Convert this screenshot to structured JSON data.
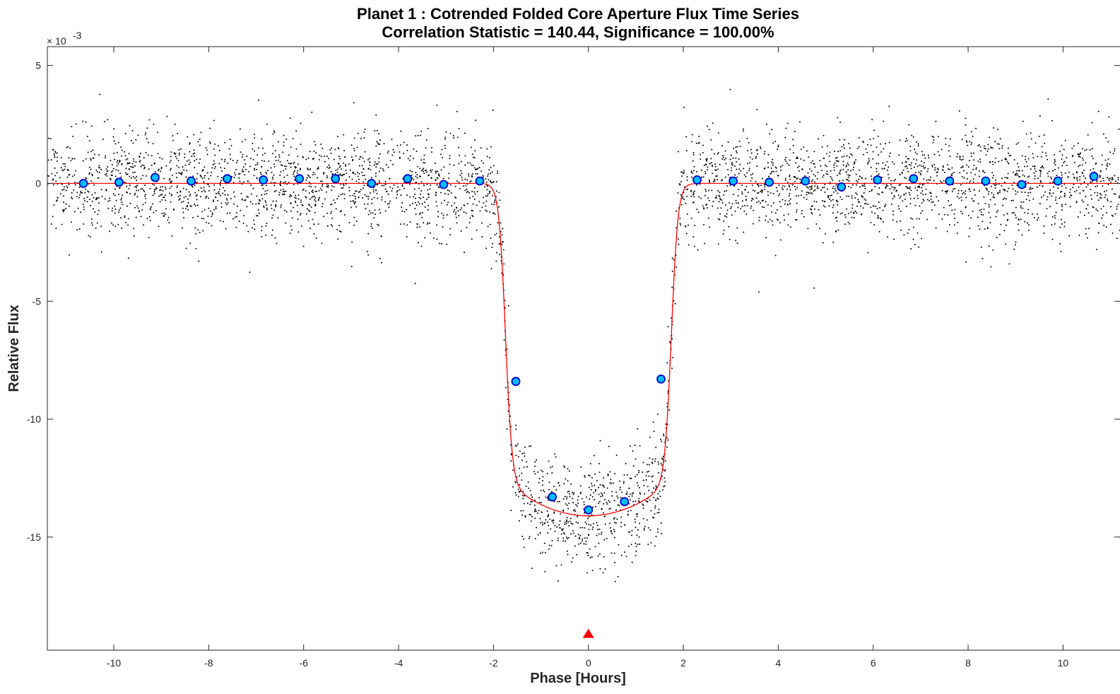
{
  "chart_data": {
    "type": "scatter",
    "title": "Planet 1 : Cotrended Folded Core Aperture Flux Time Series",
    "subtitle": "Correlation Statistic = 140.44, Significance = 100.00%",
    "xlabel": "Phase [Hours]",
    "ylabel": "Relative Flux",
    "y_exponent_label": "× 10",
    "y_exponent_power": "-3",
    "xlim": [
      -11.4,
      11.2
    ],
    "ylim": [
      -19.8,
      5.8
    ],
    "x_ticks": [
      -10,
      -8,
      -6,
      -4,
      -2,
      0,
      2,
      4,
      6,
      8,
      10
    ],
    "x_tick_labels": [
      "-10",
      "-8",
      "-6",
      "-4",
      "-2",
      "0",
      "2",
      "4",
      "6",
      "8",
      "10"
    ],
    "y_ticks": [
      5,
      0,
      -5,
      -10,
      -15
    ],
    "y_tick_labels": [
      "5",
      "0",
      "-5",
      "-10",
      "-15"
    ],
    "grid": false,
    "colors": {
      "raw_points": "#000000",
      "binned_fill": "#00bfff",
      "binned_edge": "#0000cc",
      "model_line": "#ff0000",
      "epoch_marker": "#ff0000",
      "axes": "#262626"
    },
    "model": {
      "name": "transit model fit",
      "baseline": 0.0,
      "depth": -14.1,
      "half_duration": 1.88,
      "ingress_center": 1.75
    },
    "epoch_marker": {
      "x": 0.0,
      "y": -19.1,
      "shape": "triangle"
    },
    "series": [
      {
        "kind": "binned",
        "marker": "circle",
        "x": [
          -10.64,
          -9.89,
          -9.13,
          -8.37,
          -7.61,
          -6.85,
          -6.09,
          -5.33,
          -4.57,
          -3.81,
          -3.05,
          -2.29,
          -1.53,
          -0.76,
          0.0,
          0.76,
          1.53,
          2.29,
          3.05,
          3.81,
          4.57,
          5.33,
          6.09,
          6.85,
          7.61,
          8.37,
          9.13,
          9.89,
          10.65
        ],
        "y": [
          0.0,
          0.05,
          0.25,
          0.1,
          0.2,
          0.15,
          0.2,
          0.2,
          0.0,
          0.2,
          -0.05,
          0.1,
          -8.4,
          -13.3,
          -13.85,
          -13.5,
          -8.3,
          0.15,
          0.1,
          0.05,
          0.1,
          -0.15,
          0.15,
          0.2,
          0.1,
          0.1,
          -0.05,
          0.1,
          0.3
        ]
      },
      {
        "kind": "raw",
        "marker": "dot",
        "generated": true,
        "count": 4200,
        "noise_sigma": 1.1
      }
    ]
  }
}
